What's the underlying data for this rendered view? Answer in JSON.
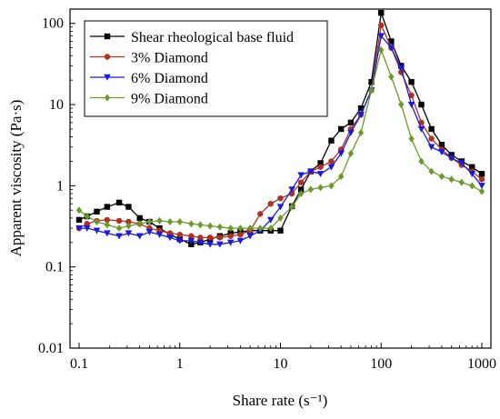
{
  "chart_data": {
    "type": "line",
    "xscale": "log",
    "yscale": "log",
    "xlim": [
      0.1,
      1000
    ],
    "ylim": [
      0.01,
      150
    ],
    "xlabel": "Share rate (s⁻¹)",
    "ylabel": "Apparent viscosity (Pa·s)",
    "xticks": [
      {
        "value": 0.1,
        "label": "0.1"
      },
      {
        "value": 1,
        "label": "1"
      },
      {
        "value": 10,
        "label": "10"
      },
      {
        "value": 100,
        "label": "100"
      },
      {
        "value": 1000,
        "label": "1000"
      }
    ],
    "yticks": [
      {
        "value": 0.01,
        "label": "0.01"
      },
      {
        "value": 0.1,
        "label": "0.1"
      },
      {
        "value": 1,
        "label": "1"
      },
      {
        "value": 10,
        "label": "10"
      },
      {
        "value": 100,
        "label": "100"
      }
    ],
    "legend_position": "top-left",
    "grid": false,
    "series": [
      {
        "name": "Shear rheological base fluid",
        "color": "#000000",
        "marker": "square",
        "points": [
          [
            0.1,
            0.38
          ],
          [
            0.12,
            0.42
          ],
          [
            0.15,
            0.48
          ],
          [
            0.19,
            0.55
          ],
          [
            0.25,
            0.62
          ],
          [
            0.31,
            0.55
          ],
          [
            0.4,
            0.4
          ],
          [
            0.5,
            0.36
          ],
          [
            0.63,
            0.3
          ],
          [
            0.8,
            0.25
          ],
          [
            1.0,
            0.22
          ],
          [
            1.3,
            0.19
          ],
          [
            1.6,
            0.2
          ],
          [
            2.0,
            0.22
          ],
          [
            2.5,
            0.24
          ],
          [
            3.2,
            0.26
          ],
          [
            4.0,
            0.27
          ],
          [
            5.0,
            0.28
          ],
          [
            6.3,
            0.28
          ],
          [
            8.0,
            0.28
          ],
          [
            10,
            0.28
          ],
          [
            13,
            0.56
          ],
          [
            16,
            0.9
          ],
          [
            20,
            1.5
          ],
          [
            25,
            1.9
          ],
          [
            32,
            3.6
          ],
          [
            40,
            5.0
          ],
          [
            50,
            6.0
          ],
          [
            63,
            9.0
          ],
          [
            80,
            19
          ],
          [
            100,
            135
          ],
          [
            126,
            60
          ],
          [
            158,
            30
          ],
          [
            200,
            19
          ],
          [
            251,
            10
          ],
          [
            316,
            5.0
          ],
          [
            400,
            3.2
          ],
          [
            500,
            2.4
          ],
          [
            630,
            2.0
          ],
          [
            800,
            1.7
          ],
          [
            1000,
            1.4
          ]
        ]
      },
      {
        "name": "3% Diamond",
        "color": "#b03022",
        "marker": "circle",
        "points": [
          [
            0.1,
            0.3
          ],
          [
            0.12,
            0.34
          ],
          [
            0.15,
            0.37
          ],
          [
            0.19,
            0.38
          ],
          [
            0.25,
            0.37
          ],
          [
            0.31,
            0.36
          ],
          [
            0.4,
            0.34
          ],
          [
            0.5,
            0.3
          ],
          [
            0.63,
            0.28
          ],
          [
            0.8,
            0.26
          ],
          [
            1.0,
            0.25
          ],
          [
            1.3,
            0.24
          ],
          [
            1.6,
            0.23
          ],
          [
            2.0,
            0.23
          ],
          [
            2.5,
            0.23
          ],
          [
            3.2,
            0.24
          ],
          [
            4.0,
            0.25
          ],
          [
            5.0,
            0.28
          ],
          [
            6.3,
            0.45
          ],
          [
            8.0,
            0.6
          ],
          [
            10,
            0.7
          ],
          [
            13,
            0.8
          ],
          [
            16,
            1.1
          ],
          [
            20,
            1.5
          ],
          [
            25,
            1.7
          ],
          [
            32,
            2.0
          ],
          [
            40,
            2.8
          ],
          [
            50,
            5.0
          ],
          [
            63,
            7.5
          ],
          [
            80,
            15
          ],
          [
            100,
            95
          ],
          [
            126,
            50
          ],
          [
            158,
            25
          ],
          [
            200,
            13
          ],
          [
            251,
            6.0
          ],
          [
            316,
            3.8
          ],
          [
            400,
            2.8
          ],
          [
            500,
            2.2
          ],
          [
            630,
            1.8
          ],
          [
            800,
            1.5
          ],
          [
            1000,
            1.2
          ]
        ]
      },
      {
        "name": "6% Diamond",
        "color": "#1a1adb",
        "marker": "triangle-down",
        "points": [
          [
            0.1,
            0.3
          ],
          [
            0.12,
            0.3
          ],
          [
            0.15,
            0.28
          ],
          [
            0.19,
            0.26
          ],
          [
            0.25,
            0.24
          ],
          [
            0.31,
            0.26
          ],
          [
            0.4,
            0.24
          ],
          [
            0.5,
            0.27
          ],
          [
            0.63,
            0.25
          ],
          [
            0.8,
            0.23
          ],
          [
            1.0,
            0.21
          ],
          [
            1.3,
            0.21
          ],
          [
            1.6,
            0.2
          ],
          [
            2.0,
            0.19
          ],
          [
            2.5,
            0.19
          ],
          [
            3.2,
            0.2
          ],
          [
            4.0,
            0.21
          ],
          [
            5.0,
            0.24
          ],
          [
            6.3,
            0.28
          ],
          [
            8.0,
            0.38
          ],
          [
            10,
            0.55
          ],
          [
            13,
            0.9
          ],
          [
            16,
            1.35
          ],
          [
            20,
            1.5
          ],
          [
            25,
            1.4
          ],
          [
            32,
            1.7
          ],
          [
            40,
            2.5
          ],
          [
            50,
            4.5
          ],
          [
            63,
            7.5
          ],
          [
            80,
            15
          ],
          [
            100,
            70
          ],
          [
            126,
            50
          ],
          [
            158,
            28
          ],
          [
            200,
            10
          ],
          [
            251,
            5.0
          ],
          [
            316,
            3.0
          ],
          [
            400,
            2.6
          ],
          [
            500,
            2.2
          ],
          [
            630,
            1.9
          ],
          [
            800,
            1.4
          ],
          [
            1000,
            1.0
          ]
        ]
      },
      {
        "name": "9% Diamond",
        "color": "#6b9a2a",
        "marker": "diamond",
        "points": [
          [
            0.1,
            0.5
          ],
          [
            0.12,
            0.42
          ],
          [
            0.15,
            0.36
          ],
          [
            0.19,
            0.33
          ],
          [
            0.25,
            0.3
          ],
          [
            0.31,
            0.32
          ],
          [
            0.4,
            0.34
          ],
          [
            0.5,
            0.36
          ],
          [
            0.63,
            0.37
          ],
          [
            0.8,
            0.36
          ],
          [
            1.0,
            0.36
          ],
          [
            1.3,
            0.34
          ],
          [
            1.6,
            0.33
          ],
          [
            2.0,
            0.32
          ],
          [
            2.5,
            0.31
          ],
          [
            3.2,
            0.3
          ],
          [
            4.0,
            0.3
          ],
          [
            5.0,
            0.3
          ],
          [
            6.3,
            0.3
          ],
          [
            8.0,
            0.3
          ],
          [
            10,
            0.4
          ],
          [
            13,
            0.55
          ],
          [
            16,
            0.8
          ],
          [
            20,
            0.9
          ],
          [
            25,
            0.95
          ],
          [
            32,
            1.0
          ],
          [
            40,
            1.3
          ],
          [
            50,
            2.5
          ],
          [
            63,
            4.5
          ],
          [
            80,
            15
          ],
          [
            100,
            47
          ],
          [
            126,
            22
          ],
          [
            158,
            10
          ],
          [
            200,
            3.8
          ],
          [
            251,
            2.0
          ],
          [
            316,
            1.5
          ],
          [
            400,
            1.3
          ],
          [
            500,
            1.2
          ],
          [
            630,
            1.1
          ],
          [
            800,
            1.0
          ],
          [
            1000,
            0.85
          ]
        ]
      }
    ]
  }
}
